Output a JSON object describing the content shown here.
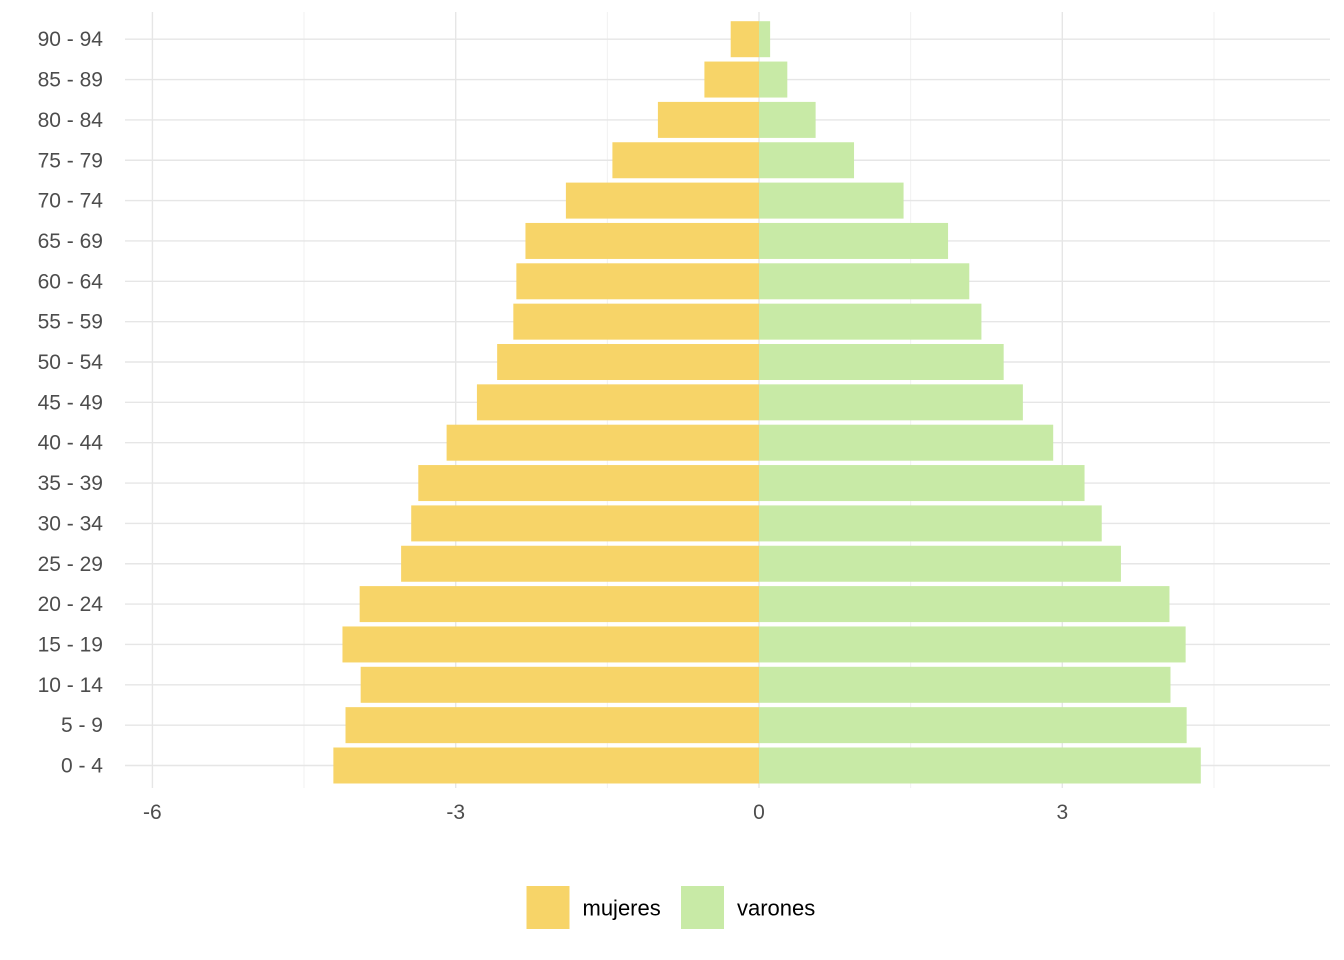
{
  "chart_data": {
    "type": "bar",
    "orientation": "horizontal",
    "layout": "population-pyramid",
    "categories": [
      "0 - 4",
      "5 - 9",
      "10 - 14",
      "15 - 19",
      "20 - 24",
      "25 - 29",
      "30 - 34",
      "35 - 39",
      "40 - 44",
      "45 - 49",
      "50 - 54",
      "55 - 59",
      "60 - 64",
      "65 - 69",
      "70 - 74",
      "75 - 79",
      "80 - 84",
      "85 - 89",
      "90 - 94"
    ],
    "series": [
      {
        "name": "mujeres",
        "color": "#f7d468",
        "values": [
          -4.21,
          -4.09,
          -3.94,
          -4.12,
          -3.95,
          -3.54,
          -3.44,
          -3.37,
          -3.09,
          -2.79,
          -2.59,
          -2.43,
          -2.4,
          -2.31,
          -1.91,
          -1.45,
          -1.0,
          -0.54,
          -0.28
        ]
      },
      {
        "name": "varones",
        "color": "#c8eaa6",
        "values": [
          4.37,
          4.23,
          4.07,
          4.22,
          4.06,
          3.58,
          3.39,
          3.22,
          2.91,
          2.61,
          2.42,
          2.2,
          2.08,
          1.87,
          1.43,
          0.94,
          0.56,
          0.28,
          0.11
        ]
      }
    ],
    "x_ticks": [
      -6,
      -3,
      0,
      3
    ],
    "xlim": [
      -6.0,
      5.6
    ],
    "grid": true,
    "legend_position": "bottom",
    "title": "",
    "xlabel": "",
    "ylabel": ""
  }
}
